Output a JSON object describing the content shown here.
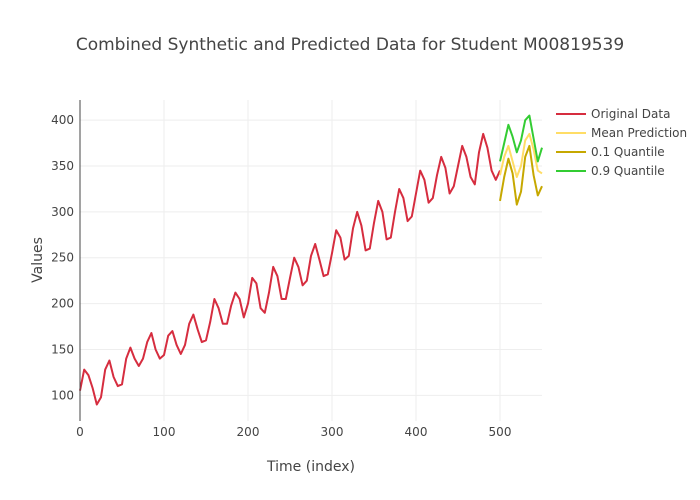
{
  "chart_data": {
    "type": "line",
    "title": "Combined Synthetic and Predicted Data for Student M00819539",
    "xlabel": "Time (index)",
    "ylabel": "Values",
    "xlim": [
      0,
      550
    ],
    "ylim": [
      72,
      422
    ],
    "x_ticks": [
      0,
      100,
      200,
      300,
      400,
      500
    ],
    "y_ticks": [
      100,
      150,
      200,
      250,
      300,
      350,
      400
    ],
    "grid": true,
    "legend_position": "top-right",
    "series": [
      {
        "name": "Original Data",
        "color": "#d62d3f",
        "x": [
          0,
          5,
          10,
          15,
          20,
          25,
          30,
          35,
          40,
          45,
          50,
          55,
          60,
          65,
          70,
          75,
          80,
          85,
          90,
          95,
          100,
          105,
          110,
          115,
          120,
          125,
          130,
          135,
          140,
          145,
          150,
          155,
          160,
          165,
          170,
          175,
          180,
          185,
          190,
          195,
          200,
          205,
          210,
          215,
          220,
          225,
          230,
          235,
          240,
          245,
          250,
          255,
          260,
          265,
          270,
          275,
          280,
          285,
          290,
          295,
          300,
          305,
          310,
          315,
          320,
          325,
          330,
          335,
          340,
          345,
          350,
          355,
          360,
          365,
          370,
          375,
          380,
          385,
          390,
          395,
          400,
          405,
          410,
          415,
          420,
          425,
          430,
          435,
          440,
          445,
          450,
          455,
          460,
          465,
          470,
          475,
          480,
          485,
          490,
          495,
          500
        ],
        "y": [
          105,
          128,
          122,
          108,
          90,
          98,
          128,
          138,
          120,
          110,
          112,
          140,
          152,
          140,
          132,
          140,
          158,
          168,
          150,
          140,
          144,
          165,
          170,
          155,
          145,
          155,
          178,
          188,
          172,
          158,
          160,
          180,
          205,
          195,
          178,
          178,
          198,
          212,
          205,
          185,
          200,
          228,
          222,
          195,
          190,
          212,
          240,
          230,
          205,
          205,
          228,
          250,
          240,
          220,
          225,
          252,
          265,
          248,
          230,
          232,
          255,
          280,
          272,
          248,
          252,
          282,
          300,
          285,
          258,
          260,
          288,
          312,
          300,
          270,
          272,
          300,
          325,
          315,
          290,
          295,
          320,
          345,
          335,
          310,
          315,
          340,
          360,
          348,
          320,
          328,
          350,
          372,
          360,
          338,
          330,
          365,
          385,
          370,
          345,
          335,
          345
        ]
      },
      {
        "name": "Mean Prediction",
        "color": "#ffdd66",
        "x": [
          500,
          505,
          510,
          515,
          520,
          525,
          530,
          535,
          540,
          545,
          550
        ],
        "y": [
          340,
          360,
          372,
          355,
          338,
          350,
          378,
          385,
          368,
          345,
          342
        ]
      },
      {
        "name": "0.1 Quantile",
        "color": "#c6a800",
        "x": [
          500,
          505,
          510,
          515,
          520,
          525,
          530,
          535,
          540,
          545,
          550
        ],
        "y": [
          312,
          338,
          358,
          342,
          308,
          322,
          360,
          372,
          340,
          318,
          328
        ]
      },
      {
        "name": "0.9 Quantile",
        "color": "#33cc33",
        "x": [
          500,
          505,
          510,
          515,
          520,
          525,
          530,
          535,
          540,
          545,
          550
        ],
        "y": [
          355,
          375,
          395,
          382,
          365,
          378,
          400,
          405,
          380,
          355,
          370
        ]
      }
    ]
  }
}
